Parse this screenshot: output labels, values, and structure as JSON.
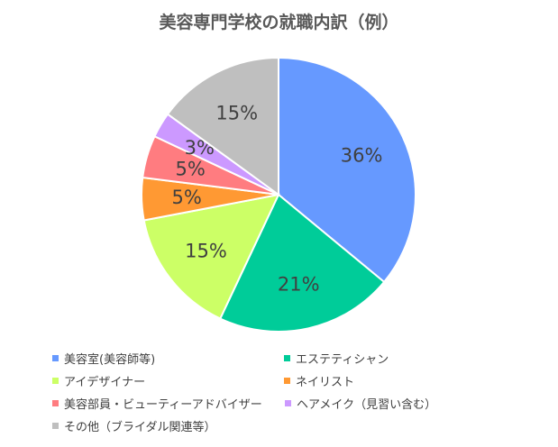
{
  "chart_data": {
    "type": "pie",
    "title": "美容専門学校の就職内訳（例）",
    "slices": [
      {
        "label": "美容室(美容師等)",
        "value": 36,
        "display": "36%",
        "color": "#6699FF"
      },
      {
        "label": "エステティシャン",
        "value": 21,
        "display": "21%",
        "color": "#00CC99"
      },
      {
        "label": "アイデザイナー",
        "value": 15,
        "display": "15%",
        "color": "#CCFF66"
      },
      {
        "label": "ネイリスト",
        "value": 5,
        "display": "5%",
        "color": "#FF9933"
      },
      {
        "label": "美容部員・ビューティーアドバイザー",
        "value": 5,
        "display": "5%",
        "color": "#FF7C80"
      },
      {
        "label": "ヘアメイク（見習い含む）",
        "value": 3,
        "display": "3%",
        "color": "#CC99FF"
      },
      {
        "label": "その他（ブライダル関連等）",
        "value": 15,
        "display": "15%",
        "color": "#BFBFBF"
      }
    ],
    "legend_position": "bottom"
  }
}
